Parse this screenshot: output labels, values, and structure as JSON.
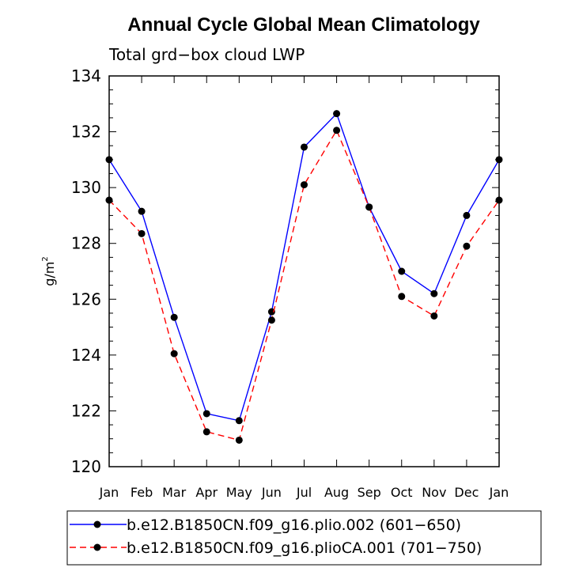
{
  "chart_data": {
    "type": "line",
    "title": "Annual Cycle Global Mean Climatology",
    "subtitle": "Total grd−box cloud LWP",
    "ylabel": "g/m",
    "ylabel_sup": "2",
    "categories": [
      "Jan",
      "Feb",
      "Mar",
      "Apr",
      "May",
      "Jun",
      "Jul",
      "Aug",
      "Sep",
      "Oct",
      "Nov",
      "Dec",
      "Jan"
    ],
    "ylim": [
      120,
      134
    ],
    "yticks": [
      120,
      122,
      124,
      126,
      128,
      130,
      132,
      134
    ],
    "grid": false,
    "legend_position": "bottom",
    "series": [
      {
        "name": "b.e12.B1850CN.f09_g16.plio.002 (601−650)",
        "color": "#0000ff",
        "dash": "solid",
        "values": [
          131.0,
          129.15,
          125.35,
          121.9,
          121.65,
          125.55,
          131.45,
          132.65,
          129.3,
          127.0,
          126.2,
          129.0,
          131.0
        ]
      },
      {
        "name": "b.e12.B1850CN.f09_g16.plioCA.001 (701−750)",
        "color": "#ff0000",
        "dash": "dashed",
        "values": [
          129.55,
          128.35,
          124.05,
          121.25,
          120.95,
          125.25,
          130.1,
          132.05,
          129.3,
          126.1,
          125.4,
          127.9,
          129.55
        ]
      }
    ]
  }
}
